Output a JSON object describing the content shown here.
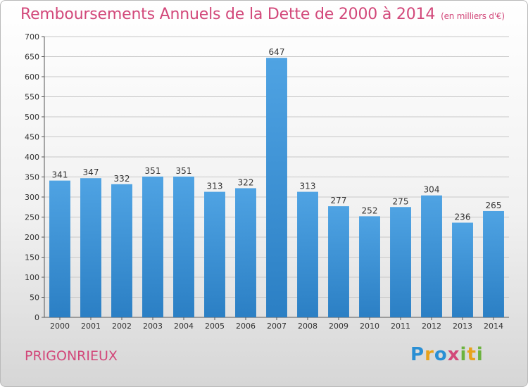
{
  "header": {
    "title": "Remboursements Annuels de la Dette de 2000 à 2014",
    "unit": "(en milliers d'€)"
  },
  "footer": {
    "place": "PRIGONRIEUX",
    "logo_letters": [
      "P",
      "r",
      "o",
      "x",
      "i",
      "t",
      "i"
    ],
    "logo_colors": [
      "#2a8fd4",
      "#e8a21b",
      "#2a8fd4",
      "#d2487a",
      "#6cb33e",
      "#e8a21b",
      "#6cb33e"
    ]
  },
  "colors": {
    "bar": "#4fa3e3",
    "bar_dark": "#2b7fc4",
    "title": "#d2487a",
    "grid": "#c8c8c8"
  },
  "chart_data": {
    "type": "bar",
    "title": "Remboursements Annuels de la Dette de 2000 à 2014",
    "categories": [
      "2000",
      "2001",
      "2002",
      "2003",
      "2004",
      "2005",
      "2006",
      "2007",
      "2008",
      "2009",
      "2010",
      "2011",
      "2012",
      "2013",
      "2014"
    ],
    "values": [
      341,
      347,
      332,
      351,
      351,
      313,
      322,
      647,
      313,
      277,
      252,
      275,
      304,
      236,
      265
    ],
    "ylim": [
      0,
      700
    ],
    "yticks": [
      0,
      50,
      100,
      150,
      200,
      250,
      300,
      350,
      400,
      450,
      500,
      550,
      600,
      650,
      700
    ],
    "grid": true
  }
}
